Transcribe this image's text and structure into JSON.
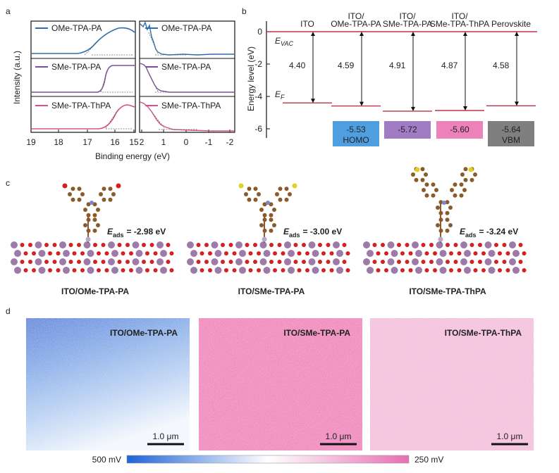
{
  "panel_labels": [
    "a",
    "b",
    "c",
    "d"
  ],
  "xps": {
    "y_label": "Intensity (a.u.)",
    "x_label": "Binding energy (eV)",
    "left_ticks": [
      "19",
      "18",
      "17",
      "16",
      "15"
    ],
    "right_ticks": [
      "2",
      "1",
      "0",
      "-1",
      "-2"
    ],
    "legend": [
      "OMe-TPA-PA",
      "SMe-TPA-PA",
      "SMe-TPA-ThPA"
    ]
  },
  "energy": {
    "y_label": "Energy level (eV)",
    "yticks": [
      "0",
      "-2",
      "-4",
      "-6"
    ],
    "vac_main": "E",
    "vac_sub": "VAC",
    "f_main": "E",
    "f_sub": "F",
    "columns": [
      {
        "label": [
          "ITO"
        ],
        "gap": "4.40"
      },
      {
        "label": [
          "ITO/",
          "OMe-TPA-PA"
        ],
        "gap": "4.59",
        "box": "-5.53",
        "box_label": "HOMO"
      },
      {
        "label": [
          "ITO/",
          "SMe-TPA-PA"
        ],
        "gap": "4.91",
        "box": "-5.72"
      },
      {
        "label": [
          "ITO/",
          "SMe-TPA-ThPA"
        ],
        "gap": "4.87",
        "box": "-5.60"
      },
      {
        "label": [
          "Perovskite"
        ],
        "gap": "4.58",
        "box": "-5.64",
        "box_label": "VBM"
      }
    ]
  },
  "adsorption": {
    "prefix": "E",
    "sub": "ads",
    "items": [
      {
        "energy": "= -2.98 eV",
        "caption": "ITO/OMe-TPA-PA"
      },
      {
        "energy": "= -3.00 eV",
        "caption": "ITO/SMe-TPA-PA"
      },
      {
        "energy": "= -3.24 eV",
        "caption": "ITO/SMe-TPA-ThPA"
      }
    ]
  },
  "kpfm": {
    "tiles": [
      "ITO/OMe-TPA-PA",
      "ITO/SMe-TPA-PA",
      "ITO/SMe-TPA-ThPA"
    ],
    "scale": "1.0 μm",
    "cbar_min": "500 mV",
    "cbar_max": "250 mV"
  }
}
